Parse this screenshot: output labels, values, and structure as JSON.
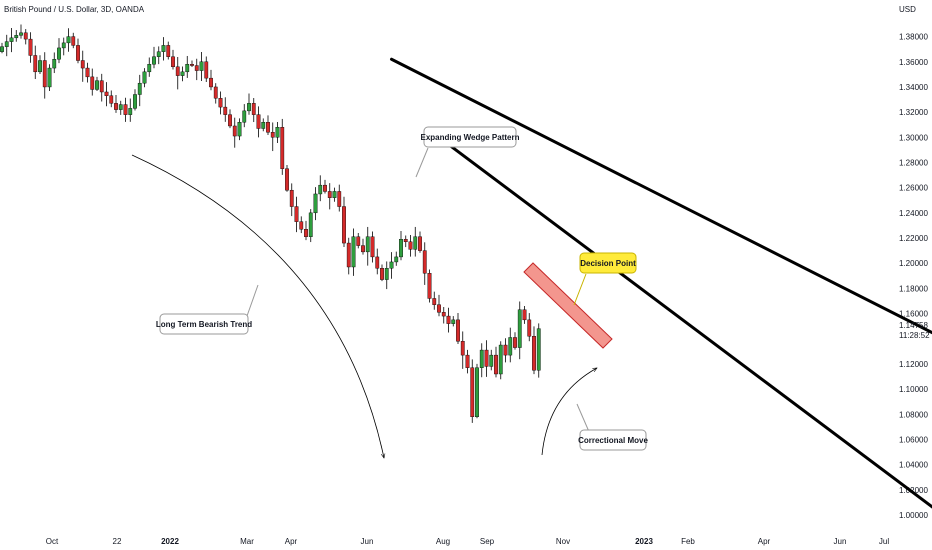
{
  "header": {
    "title": "British Pound / U.S. Dollar, 3D, OANDA"
  },
  "price_axis": {
    "currency": "USD",
    "last_price": "1.14758",
    "countdown": "11:28:52",
    "last_price_color": "#26a69a"
  },
  "colors": {
    "up": "#26a69a",
    "down": "#ef5350",
    "up_body": "#2e9e3e",
    "down_body": "#d42a2a",
    "line": "#000000",
    "zone": "#f28b82"
  },
  "annotations": {
    "wedge": "Expanding Wedge Pattern",
    "decision": "Decision Point",
    "trend": "Long Term Bearish Trend",
    "correction": "Correctional Move"
  },
  "chart_data": {
    "type": "candlestick",
    "ylim": [
      1.0,
      1.39
    ],
    "y_ticks": [
      "1.38000",
      "1.36000",
      "1.34000",
      "1.32000",
      "1.30000",
      "1.28000",
      "1.26000",
      "1.24000",
      "1.22000",
      "1.20000",
      "1.18000",
      "1.16000",
      "1.12000",
      "1.10000",
      "1.08000",
      "1.06000",
      "1.04000",
      "1.02000",
      "1.00000"
    ],
    "x_ticks": [
      {
        "label": "Oct",
        "bold": false
      },
      {
        "label": "22",
        "bold": false
      },
      {
        "label": "2022",
        "bold": true
      },
      {
        "label": "Mar",
        "bold": false
      },
      {
        "label": "Apr",
        "bold": false
      },
      {
        "label": "Jun",
        "bold": false
      },
      {
        "label": "Aug",
        "bold": false
      },
      {
        "label": "Sep",
        "bold": false
      },
      {
        "label": "Nov",
        "bold": false
      },
      {
        "label": "2023",
        "bold": true
      },
      {
        "label": "Feb",
        "bold": false
      },
      {
        "label": "Apr",
        "bold": false
      },
      {
        "label": "Jun",
        "bold": false
      },
      {
        "label": "Jul",
        "bold": false
      }
    ],
    "closes": [
      1.372,
      1.376,
      1.379,
      1.381,
      1.383,
      1.378,
      1.365,
      1.352,
      1.361,
      1.34,
      1.355,
      1.362,
      1.371,
      1.375,
      1.38,
      1.373,
      1.361,
      1.355,
      1.348,
      1.338,
      1.345,
      1.336,
      1.333,
      1.327,
      1.322,
      1.326,
      1.318,
      1.323,
      1.334,
      1.343,
      1.352,
      1.358,
      1.364,
      1.368,
      1.373,
      1.364,
      1.356,
      1.349,
      1.352,
      1.358,
      1.357,
      1.353,
      1.36,
      1.347,
      1.34,
      1.331,
      1.324,
      1.318,
      1.309,
      1.301,
      1.312,
      1.321,
      1.327,
      1.318,
      1.307,
      1.312,
      1.304,
      1.3,
      1.308,
      1.275,
      1.258,
      1.245,
      1.233,
      1.227,
      1.221,
      1.24,
      1.255,
      1.262,
      1.257,
      1.252,
      1.257,
      1.245,
      1.216,
      1.197,
      1.221,
      1.214,
      1.209,
      1.221,
      1.205,
      1.196,
      1.187,
      1.196,
      1.201,
      1.205,
      1.219,
      1.217,
      1.211,
      1.221,
      1.21,
      1.192,
      1.172,
      1.167,
      1.161,
      1.158,
      1.152,
      1.155,
      1.138,
      1.127,
      1.117,
      1.078,
      1.117,
      1.131,
      1.118,
      1.127,
      1.112,
      1.135,
      1.127,
      1.141,
      1.133,
      1.163,
      1.155,
      1.142,
      1.115,
      1.148
    ],
    "wedge_upper": {
      "from": {
        "bar": 82,
        "y": 1.362
      },
      "to": {
        "bar": 223,
        "y": 1.093
      }
    },
    "wedge_lower": {
      "from": {
        "bar": 92,
        "y": 1.3
      },
      "to": {
        "bar": 196,
        "y": 1.006
      }
    }
  }
}
